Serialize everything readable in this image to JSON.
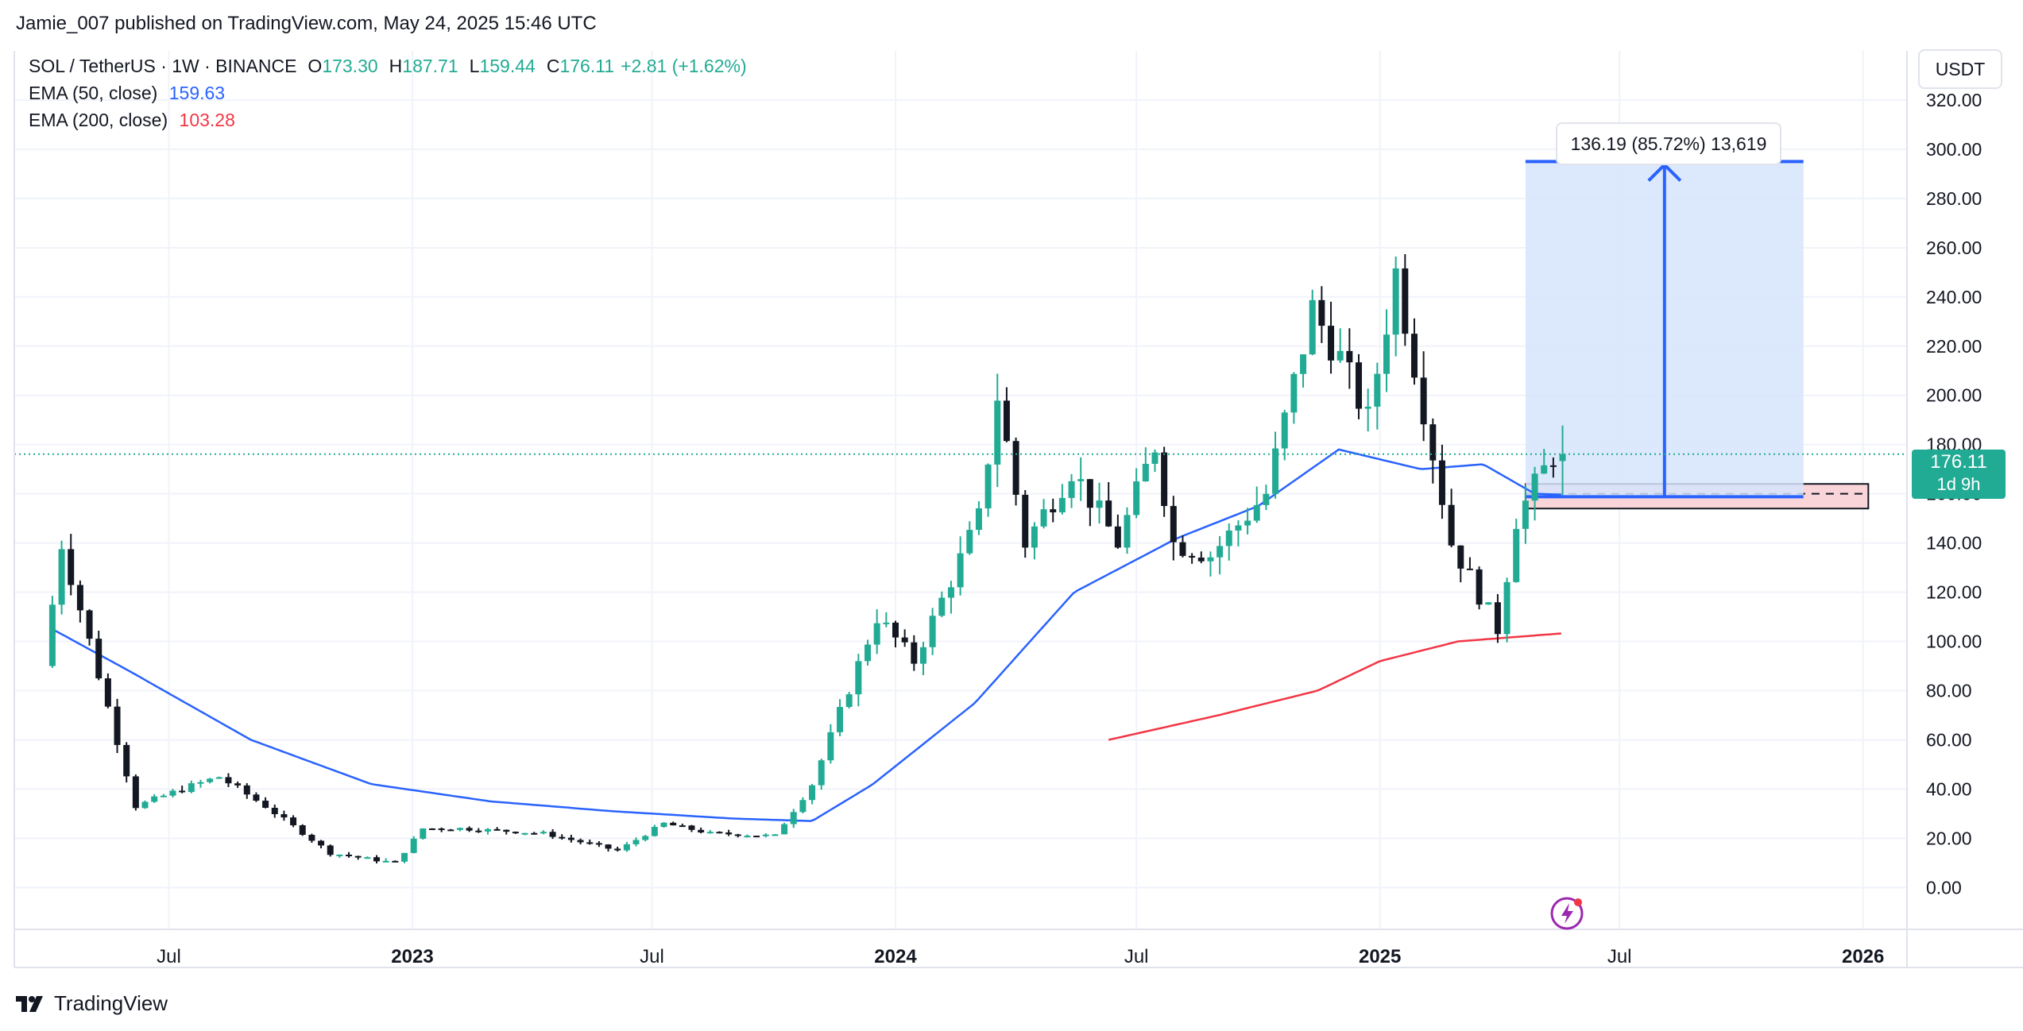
{
  "publish_line": "Jamie_007 published on TradingView.com, May 24, 2025 15:46 UTC",
  "legend": {
    "symbol": "SOL / TetherUS · 1W · BINANCE",
    "open_label": "O",
    "open": "173.30",
    "high_label": "H",
    "high": "187.71",
    "low_label": "L",
    "low": "159.44",
    "close_label": "C",
    "close": "176.11",
    "change": "+2.81 (+1.62%)",
    "ema50_label": "EMA (50, close)",
    "ema50_value": "159.63",
    "ema200_label": "EMA (200, close)",
    "ema200_value": "103.28"
  },
  "currency": "USDT",
  "price_tag": {
    "price": "176.11",
    "countdown": "1d 9h"
  },
  "measure_label": "136.19 (85.72%) 13,619",
  "brand": "TradingView",
  "colors": {
    "up": "#22ab94",
    "down": "#131722",
    "ema50": "#2962ff",
    "ema200": "#f23645",
    "measure_fill": "#d6e4fb",
    "measure_line": "#2962ff",
    "zone_fill": "#f9d5d9"
  },
  "icons": [
    "tradingview-logo-icon",
    "lightning-snapshot-icon"
  ],
  "chart_data": {
    "type": "candlestick",
    "timeframe": "1W",
    "y_axis": {
      "ticks": [
        "320.00",
        "300.00",
        "280.00",
        "260.00",
        "240.00",
        "220.00",
        "200.00",
        "180.00",
        "160.00",
        "140.00",
        "120.00",
        "100.00",
        "80.00",
        "60.00",
        "40.00",
        "20.00",
        "0.00"
      ],
      "ylim": [
        -17,
        340
      ]
    },
    "x_axis": {
      "ticks": [
        {
          "label": "Jul",
          "date": "2022-07-01",
          "bold": false
        },
        {
          "label": "2023",
          "date": "2023-01-01",
          "bold": true
        },
        {
          "label": "Jul",
          "date": "2023-07-01",
          "bold": false
        },
        {
          "label": "2024",
          "date": "2024-01-01",
          "bold": true
        },
        {
          "label": "Jul",
          "date": "2024-07-01",
          "bold": false
        },
        {
          "label": "2025",
          "date": "2025-01-01",
          "bold": true
        },
        {
          "label": "Jul",
          "date": "2025-07-01",
          "bold": false
        },
        {
          "label": "2026",
          "date": "2026-01-01",
          "bold": true
        }
      ]
    },
    "first_candle_date": "2022-04-04",
    "price_anchors": [
      [
        "2022-04-04",
        90
      ],
      [
        "2022-04-18",
        140
      ],
      [
        "2022-05-09",
        100
      ],
      [
        "2022-06-13",
        33
      ],
      [
        "2022-07-18",
        40
      ],
      [
        "2022-08-15",
        45
      ],
      [
        "2022-09-19",
        33
      ],
      [
        "2022-11-07",
        14
      ],
      [
        "2022-12-26",
        10
      ],
      [
        "2023-01-16",
        24
      ],
      [
        "2023-02-13",
        24
      ],
      [
        "2023-04-17",
        22
      ],
      [
        "2023-06-12",
        15
      ],
      [
        "2023-07-17",
        26
      ],
      [
        "2023-08-21",
        22
      ],
      [
        "2023-10-09",
        21
      ],
      [
        "2023-11-06",
        42
      ],
      [
        "2023-12-25",
        110
      ],
      [
        "2024-01-22",
        92
      ],
      [
        "2024-03-11",
        150
      ],
      [
        "2024-03-25",
        200
      ],
      [
        "2024-04-15",
        140
      ],
      [
        "2024-05-20",
        170
      ],
      [
        "2024-06-24",
        140
      ],
      [
        "2024-07-22",
        180
      ],
      [
        "2024-08-05",
        140
      ],
      [
        "2024-09-02",
        135
      ],
      [
        "2024-10-14",
        160
      ],
      [
        "2024-11-18",
        235
      ],
      [
        "2024-12-09",
        215
      ],
      [
        "2024-12-30",
        190
      ],
      [
        "2025-01-20",
        250
      ],
      [
        "2025-02-10",
        195
      ],
      [
        "2025-03-03",
        140
      ],
      [
        "2025-04-07",
        105
      ],
      [
        "2025-04-21",
        150
      ],
      [
        "2025-05-19",
        176.11
      ]
    ],
    "ema50_anchors": [
      [
        "2022-04-04",
        105
      ],
      [
        "2022-06-01",
        88
      ],
      [
        "2022-09-01",
        60
      ],
      [
        "2022-12-01",
        42
      ],
      [
        "2023-03-01",
        35
      ],
      [
        "2023-06-01",
        31
      ],
      [
        "2023-09-01",
        28
      ],
      [
        "2023-10-30",
        27
      ],
      [
        "2023-12-15",
        42
      ],
      [
        "2024-03-01",
        75
      ],
      [
        "2024-05-15",
        120
      ],
      [
        "2024-08-01",
        142
      ],
      [
        "2024-10-01",
        155
      ],
      [
        "2024-12-01",
        178
      ],
      [
        "2025-02-01",
        170
      ],
      [
        "2025-03-20",
        172
      ],
      [
        "2025-04-28",
        160
      ],
      [
        "2025-05-19",
        159.63
      ]
    ],
    "ema200_anchors": [
      [
        "2024-06-10",
        60
      ],
      [
        "2024-09-01",
        70
      ],
      [
        "2024-11-15",
        80
      ],
      [
        "2025-01-01",
        92
      ],
      [
        "2025-03-01",
        100
      ],
      [
        "2025-05-19",
        103.28
      ]
    ],
    "current_price": 176.11,
    "last_candle": {
      "open": 173.3,
      "high": 187.71,
      "low": 159.44,
      "close": 176.11
    },
    "measure_tool": {
      "start_date": "2025-04-21",
      "end_date": "2025-11-17",
      "from_price": 158.8,
      "to_price": 295
    },
    "support_zone": {
      "start_date": "2025-04-21",
      "end_date": "2026-01-05",
      "top": 164,
      "bottom": 154
    },
    "grid": true
  }
}
